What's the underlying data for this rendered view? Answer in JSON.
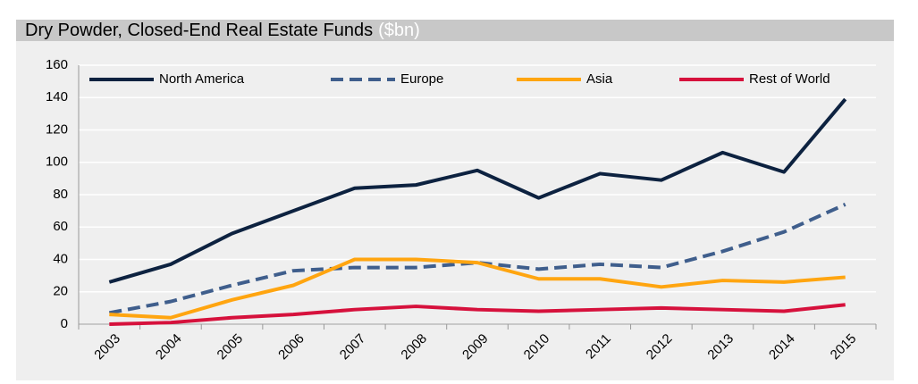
{
  "chart_data": {
    "type": "line",
    "title": "Dry Powder, Closed-End Real Estate Funds",
    "unit": "($bn)",
    "categories": [
      "2003",
      "2004",
      "2005",
      "2006",
      "2007",
      "2008",
      "2009",
      "2010",
      "2011",
      "2012",
      "2013",
      "2014",
      "2015"
    ],
    "series": [
      {
        "name": "North America",
        "color": "#0d2240",
        "dashed": false,
        "values": [
          26,
          37,
          56,
          70,
          84,
          86,
          95,
          78,
          93,
          89,
          106,
          94,
          139
        ]
      },
      {
        "name": "Europe",
        "color": "#3f5e8c",
        "dashed": true,
        "values": [
          7,
          14,
          24,
          33,
          35,
          35,
          38,
          34,
          37,
          35,
          45,
          57,
          74
        ]
      },
      {
        "name": "Asia",
        "color": "#ffa510",
        "dashed": false,
        "values": [
          6,
          4,
          15,
          24,
          40,
          40,
          38,
          28,
          28,
          23,
          27,
          26,
          29
        ]
      },
      {
        "name": "Rest of World",
        "color": "#d6113c",
        "dashed": false,
        "values": [
          0,
          1,
          4,
          6,
          9,
          11,
          9,
          8,
          9,
          10,
          9,
          8,
          12
        ]
      }
    ],
    "ylim": [
      0,
      160
    ],
    "yticks": [
      0,
      20,
      40,
      60,
      80,
      100,
      120,
      140,
      160
    ],
    "grid": true,
    "legend": "top"
  }
}
